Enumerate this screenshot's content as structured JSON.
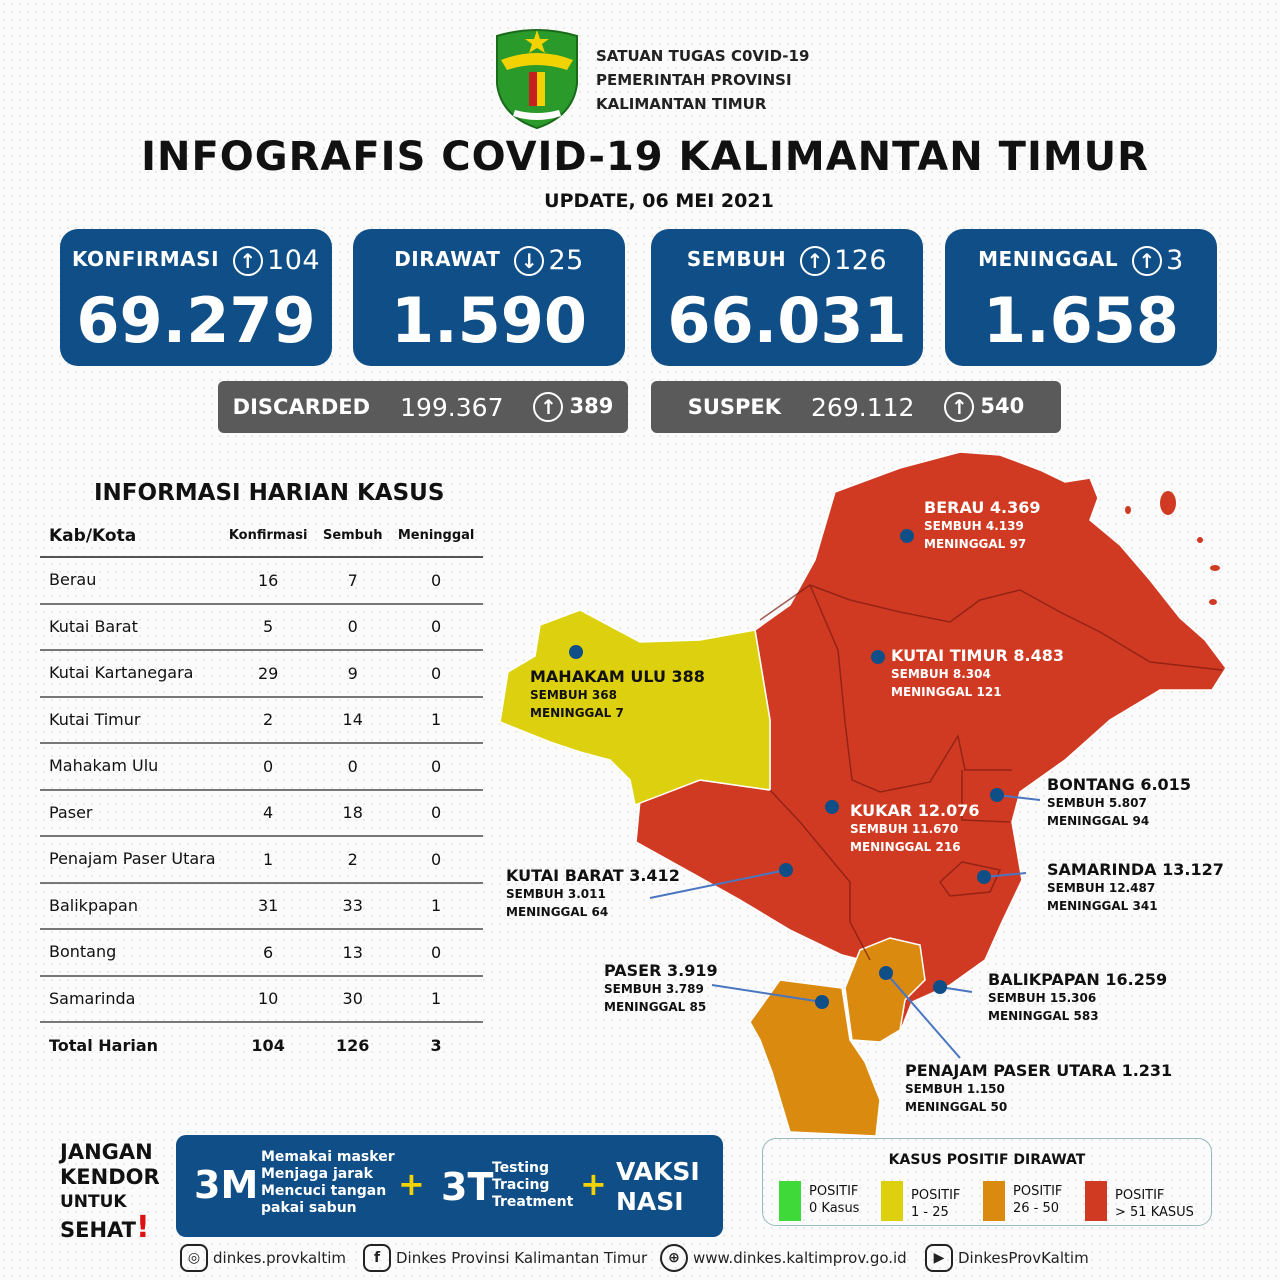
{
  "header": {
    "org_lines": [
      "SATUAN TUGAS C0VID-19",
      "PEMERINTAH PROVINSI",
      "KALIMANTAN TIMUR"
    ],
    "title": "INFOGRAFIS COVID-19 KALIMANTAN TIMUR",
    "update": "UPDATE, 06 MEI 2021",
    "logo_text": "KALIMANTAN TIMUR"
  },
  "cards": [
    {
      "label": "KONFIRMASI",
      "direction": "up",
      "change": "104",
      "value": "69.279"
    },
    {
      "label": "DIRAWAT",
      "direction": "down",
      "change": "25",
      "value": "1.590"
    },
    {
      "label": "SEMBUH",
      "direction": "up",
      "change": "126",
      "value": "66.031"
    },
    {
      "label": "MENINGGAL",
      "direction": "up",
      "change": "3",
      "value": "1.658"
    }
  ],
  "secondary": [
    {
      "label": "DISCARDED",
      "value": "199.367",
      "direction": "up",
      "change": "389"
    },
    {
      "label": "SUSPEK",
      "value": "269.112",
      "direction": "up",
      "change": "540"
    }
  ],
  "daily": {
    "title": "INFORMASI HARIAN KASUS",
    "columns": [
      "Kab/Kota",
      "Konfirmasi",
      "Sembuh",
      "Meninggal"
    ],
    "rows": [
      [
        "Berau",
        "16",
        "7",
        "0"
      ],
      [
        "Kutai Barat",
        "5",
        "0",
        "0"
      ],
      [
        "Kutai Kartanegara",
        "29",
        "9",
        "0"
      ],
      [
        "Kutai Timur",
        "2",
        "14",
        "1"
      ],
      [
        "Mahakam Ulu",
        "0",
        "0",
        "0"
      ],
      [
        "Paser",
        "4",
        "18",
        "0"
      ],
      [
        "Penajam Paser Utara",
        "1",
        "2",
        "0"
      ],
      [
        "Balikpapan",
        "31",
        "33",
        "1"
      ],
      [
        "Bontang",
        "6",
        "13",
        "0"
      ],
      [
        "Samarinda",
        "10",
        "30",
        "1"
      ]
    ],
    "total": [
      "Total Harian",
      "104",
      "126",
      "3"
    ]
  },
  "map": {
    "regions": [
      {
        "name": "BERAU  4.369",
        "sembuh": "SEMBUH 4.139",
        "meninggal": "MENINGGAL 97",
        "color": "#d13a22"
      },
      {
        "name": "KUTAI TIMUR 8.483",
        "sembuh": "SEMBUH 8.304",
        "meninggal": "MENINGGAL 121",
        "color": "#d13a22"
      },
      {
        "name": "MAHAKAM ULU  388",
        "sembuh": "SEMBUH 368",
        "meninggal": "MENINGGAL 7",
        "color": "#ddd10f"
      },
      {
        "name": "KUKAR 12.076",
        "sembuh": "SEMBUH 11.670",
        "meninggal": "MENINGGAL 216",
        "color": "#d13a22"
      },
      {
        "name": "BONTANG  6.015",
        "sembuh": "SEMBUH 5.807",
        "meninggal": "MENINGGAL 94",
        "color": "#d13a22"
      },
      {
        "name": "KUTAI BARAT 3.412",
        "sembuh": "SEMBUH 3.011",
        "meninggal": "MENINGGAL 64",
        "color": "#d13a22"
      },
      {
        "name": "SAMARINDA  13.127",
        "sembuh": "SEMBUH 12.487",
        "meninggal": "MENINGGAL 341",
        "color": "#d13a22"
      },
      {
        "name": "PASER  3.919",
        "sembuh": "SEMBUH 3.789",
        "meninggal": "MENINGGAL 85",
        "color": "#db8a10"
      },
      {
        "name": "BALIKPAPAN  16.259",
        "sembuh": "SEMBUH  15.306",
        "meninggal": "MENINGGAL 583",
        "color": "#d13a22"
      },
      {
        "name": "PENAJAM PASER UTARA 1.231",
        "sembuh": "SEMBUH 1.150",
        "meninggal": "MENINGGAL 50",
        "color": "#db8a10"
      }
    ]
  },
  "slogan": {
    "l1": "JANGAN",
    "l2": "KENDOR",
    "l3": "UNTUK",
    "l4": "SEHAT",
    "excl": "!"
  },
  "campaign": {
    "m3": "3M",
    "m3_items": [
      "Memakai masker",
      "Menjaga jarak",
      "Mencuci tangan",
      "pakai sabun"
    ],
    "plus": "+",
    "t3": "3T",
    "t3_items": [
      "Testing",
      "Tracing",
      "Treatment"
    ],
    "vaksin": [
      "VAKSI",
      "NASI"
    ]
  },
  "legend": {
    "title": "KASUS POSITIF DIRAWAT",
    "items": [
      {
        "l1": "POSITIF",
        "l2": "0 Kasus",
        "color": "#3fd93a"
      },
      {
        "l1": "POSITIF",
        "l2": "1 - 25",
        "color": "#ddd10f"
      },
      {
        "l1": "POSITIF",
        "l2": "26 - 50",
        "color": "#db8a10"
      },
      {
        "l1": "POSITIF",
        "l2": "> 51 KASUS",
        "color": "#d13a22"
      }
    ]
  },
  "footer": [
    {
      "icon": "instagram-icon",
      "text": "dinkes.provkaltim"
    },
    {
      "icon": "facebook-icon",
      "text": "Dinkes Provinsi Kalimantan Timur"
    },
    {
      "icon": "globe-icon",
      "text": "www.dinkes.kaltimprov.go.id"
    },
    {
      "icon": "youtube-icon",
      "text": "DinkesProvKaltim"
    }
  ]
}
